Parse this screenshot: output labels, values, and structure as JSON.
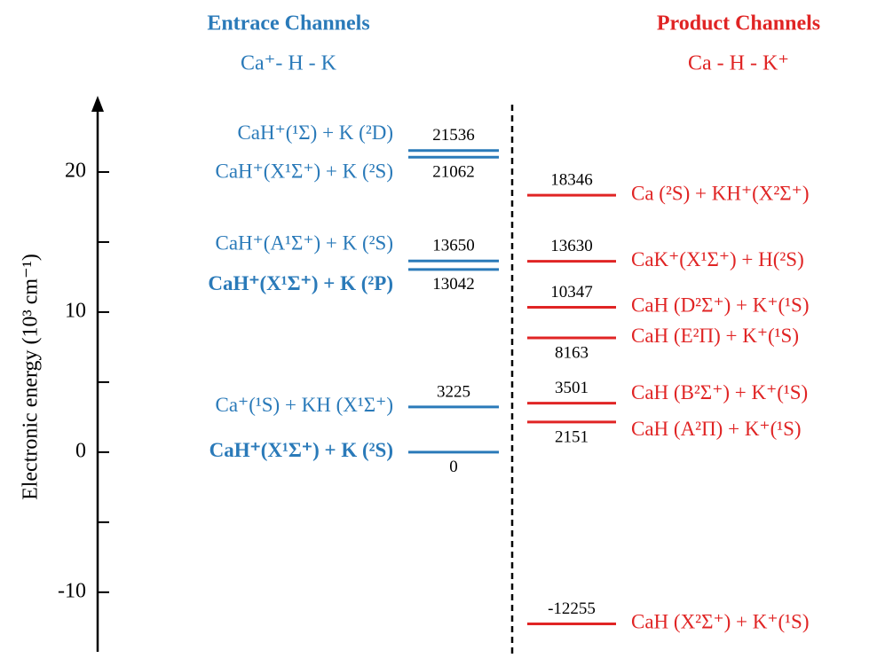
{
  "chart_data": {
    "type": "energy-levels",
    "ylabel": "Electronic energy (10³ cm⁻¹)",
    "ylim": [
      -14,
      25
    ],
    "yticks": [
      -10,
      0,
      10,
      20
    ],
    "minor_yticks": [
      -5,
      5,
      15
    ],
    "series": [
      {
        "name": "Entrace Channels",
        "subtitle": "Ca⁺- H - K",
        "color": "#2a7ab9",
        "labels": [
          "CaH⁺(¹Σ) + K (²D)",
          "CaH⁺(X¹Σ⁺) + K (²S)",
          "CaH⁺(A¹Σ⁺) + K (²S)",
          "CaH⁺(X¹Σ⁺) + K (²P)",
          "Ca⁺(¹S) + KH (X¹Σ⁺)",
          "CaH⁺(X¹Σ⁺) + K (²S)"
        ],
        "values": [
          21.536,
          21.062,
          13.65,
          13.042,
          3.225,
          0
        ],
        "value_labels": [
          "21536",
          "21062",
          "13650",
          "13042",
          "3225",
          "0"
        ],
        "label_pos": [
          "above",
          "below",
          "above",
          "below",
          "above",
          "below"
        ],
        "bold": [
          false,
          false,
          false,
          true,
          false,
          true
        ]
      },
      {
        "name": "Product Channels",
        "subtitle": "Ca - H - K⁺",
        "color": "#e02424",
        "labels": [
          "Ca (²S) + KH⁺(X²Σ⁺)",
          "CaK⁺(X¹Σ⁺) + H(²S)",
          "CaH (D²Σ⁺) + K⁺(¹S)",
          "CaH (E²Π) + K⁺(¹S)",
          "CaH (B²Σ⁺) + K⁺(¹S)",
          "CaH (A²Π) + K⁺(¹S)",
          "CaH (X²Σ⁺) + K⁺(¹S)"
        ],
        "values": [
          18.346,
          13.63,
          10.347,
          8.163,
          3.501,
          2.151,
          -12.255
        ],
        "value_labels": [
          "18346",
          "13630",
          "10347",
          "8163",
          "3501",
          "2151",
          "-12255"
        ],
        "label_pos": [
          "above",
          "above",
          "above",
          "below",
          "above",
          "below",
          "above"
        ],
        "bold": [
          false,
          false,
          false,
          false,
          false,
          false,
          false
        ]
      }
    ]
  }
}
